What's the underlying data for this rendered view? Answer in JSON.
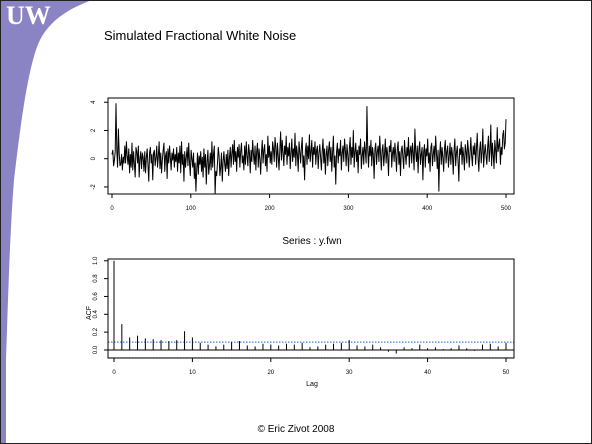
{
  "slide": {
    "logo_text": "UW",
    "title": "Simulated Fractional White Noise",
    "footer": "© Eric Zivot 2008"
  },
  "colors": {
    "logo_purple": "#8a84c4",
    "logo_text": "#ffffff",
    "series": "#000000",
    "ci_band": "#1a66cc"
  },
  "chart_data": [
    {
      "type": "line",
      "title": "",
      "xlabel": "",
      "ylabel": "",
      "xlim": [
        0,
        500
      ],
      "ylim": [
        -2.5,
        4.3
      ],
      "x_ticks": [
        "0",
        "100",
        "200",
        "300",
        "400",
        "500"
      ],
      "y_ticks": [
        "-2",
        "0",
        "2",
        "4"
      ],
      "series": [
        {
          "values": [
            0.3,
            0.6,
            -0.5,
            -0.1,
            0.5,
            3.9,
            0.6,
            -0.6,
            2.1,
            0.4,
            -0.5,
            -0.4,
            0.3,
            -0.8,
            0.1,
            -0.3,
            0.9,
            -0.3,
            1.2,
            0.2,
            -0.4,
            0.7,
            -1.0,
            0.3,
            -0.6,
            1.1,
            -0.8,
            0.5,
            -0.4,
            -1.3,
            0.8,
            0.5,
            -0.3,
            0.9,
            -1.3,
            0.0,
            0.5,
            -0.7,
            0.4,
            0.1,
            -0.9,
            0.5,
            -1.0,
            0.1,
            0.7,
            -0.4,
            -1.6,
            0.4,
            0.8,
            -0.3,
            0.3,
            -1.5,
            0.4,
            0.6,
            -0.5,
            0.1,
            0.9,
            -0.6,
            0.2,
            1.2,
            -0.7,
            0.4,
            -1.0,
            -0.1,
            0.6,
            1.1,
            -0.9,
            0.2,
            0.5,
            -1.4,
            0.7,
            -0.3,
            0.9,
            0.1,
            -0.8,
            0.4,
            -0.1,
            0.7,
            -0.6,
            0.3,
            -0.2,
            0.8,
            -0.9,
            0.4,
            -0.3,
            0.9,
            -1.0,
            1.2,
            -0.4,
            0.3,
            -1.6,
            0.5,
            -0.6,
            0.1,
            0.8,
            -0.5,
            1.1,
            -0.3,
            -1.2,
            0.6,
            0.0,
            -0.6,
            0.4,
            -1.4,
            -0.3,
            -2.3,
            -0.8,
            0.4,
            -1.1,
            0.2,
            -0.4,
            0.5,
            -0.9,
            0.1,
            -1.3,
            0.7,
            -0.6,
            0.3,
            -1.8,
            -0.2,
            0.6,
            -1.1,
            -0.5,
            0.4,
            -0.8,
            1.2,
            -0.6,
            0.3,
            0.9,
            -2.5,
            -0.9,
            -1.2,
            -0.3,
            0.8,
            0.2,
            -1.2,
            -0.6,
            0.4,
            -1.6,
            -0.2,
            0.5,
            -0.4,
            -0.9,
            0.3,
            -0.7,
            0.6,
            -1.2,
            0.1,
            0.8,
            -0.6,
            0.4,
            1.0,
            -0.4,
            1.3,
            -0.2,
            0.5,
            -0.9,
            0.8,
            0.1,
            1.0,
            -0.6,
            0.5,
            1.1,
            -0.3,
            0.2,
            -0.8,
            0.9,
            -0.4,
            1.2,
            0.2,
            -0.5,
            1.0,
            0.4,
            -1.0,
            0.6,
            -0.2,
            1.3,
            0.3,
            -0.4,
            0.9,
            -0.8,
            0.5,
            1.1,
            -0.6,
            0.7,
            0.0,
            -1.1,
            0.4,
            1.3,
            -0.3,
            0.6,
            1.0,
            -0.5,
            0.3,
            -0.9,
            1.6,
            0.1,
            0.9,
            -0.3,
            0.5,
            -0.4,
            1.2,
            0.7,
            -0.2,
            1.5,
            0.8,
            -0.6,
            1.1,
            0.2,
            -0.8,
            0.6,
            1.9,
            -0.1,
            1.3,
            0.4,
            -0.5,
            0.9,
            0.3,
            1.6,
            -0.4,
            0.8,
            0.2,
            1.1,
            -0.7,
            0.4,
            1.4,
            -0.2,
            0.7,
            0.1,
            1.8,
            -0.5,
            0.9,
            0.3,
            -0.9,
            1.2,
            0.5,
            -0.3,
            0.8,
            1.5,
            -0.6,
            0.2,
            -1.5,
            0.6,
            1.1,
            -0.4,
            0.9,
            0.0,
            1.7,
            -0.2,
            0.5,
            1.3,
            -0.6,
            0.8,
            0.3,
            1.2,
            -0.4,
            0.6,
            0.9,
            -0.7,
            0.4,
            1.0,
            0.1,
            -0.8,
            0.5,
            1.4,
            -0.3,
            0.7,
            -1.1,
            0.3,
            0.9,
            -0.5,
            0.6,
            1.2,
            -0.2,
            0.8,
            -0.9,
            0.4,
            1.6,
            -0.6,
            0.2,
            -1.8,
            0.5,
            1.1,
            -0.3,
            0.7,
            0.2,
            1.3,
            -0.8,
            0.4,
            0.9,
            -0.2,
            1.4,
            0.6,
            -0.5,
            1.0,
            0.3,
            -0.9,
            0.7,
            1.5,
            -0.4,
            0.8,
            0.1,
            2.0,
            -0.6,
            0.5,
            1.1,
            -0.2,
            0.6,
            -1.0,
            0.9,
            0.3,
            1.4,
            -0.7,
            0.2,
            0.8,
            -0.4,
            1.2,
            0.5,
            -0.3,
            3.7,
            0.6,
            -0.6,
            0.9,
            0.2,
            1.3,
            -0.5,
            0.8,
            0.3,
            -1.4,
            0.7,
            1.1,
            -0.4,
            0.5,
            0.9,
            -0.2,
            1.6,
            0.4,
            -0.8,
            0.6,
            1.0,
            -0.5,
            0.3,
            1.4,
            -0.3,
            0.8,
            0.2,
            -1.2,
            0.9,
            0.5,
            1.3,
            -0.6,
            0.4,
            0.8,
            -0.2,
            1.1,
            0.3,
            -0.9,
            0.7,
            1.2,
            -0.4,
            0.5,
            -1.2,
            0.6,
            0.9,
            0.1,
            -0.7,
            1.3,
            0.4,
            -0.4,
            0.8,
            0.2,
            1.5,
            -0.6,
            0.6,
            0.9,
            -0.3,
            1.1,
            0.4,
            -0.8,
            2.1,
            0.5,
            -0.2,
            0.9,
            -1.0,
            0.6,
            1.2,
            -0.4,
            0.3,
            0.8,
            -1.5,
            0.5,
            1.0,
            -0.6,
            0.7,
            0.2,
            1.4,
            -0.3,
            0.4,
            -0.9,
            0.8,
            1.1,
            -0.5,
            0.3,
            0.9,
            -0.2,
            1.6,
            0.4,
            -0.7,
            0.6,
            -2.3,
            0.3,
            1.2,
            -0.4,
            0.8,
            0.1,
            -0.9,
            0.7,
            1.3,
            -0.3,
            0.5,
            0.9,
            -0.6,
            0.2,
            1.1,
            -0.4,
            0.8,
            0.3,
            -1.1,
            0.6,
            1.4,
            -0.5,
            0.4,
            0.9,
            -0.2,
            -1.6,
            0.7,
            0.3,
            1.2,
            -0.4,
            0.8,
            0.2,
            -0.8,
            1.0,
            0.5,
            -0.3,
            1.3,
            0.6,
            -0.6,
            0.4,
            1.5,
            0.2,
            -0.5,
            0.9,
            0.3,
            1.1,
            -0.4,
            0.7,
            1.8,
            0.1,
            -0.9,
            0.6,
            1.2,
            -0.3,
            0.5,
            2.1,
            -0.6,
            0.4,
            1.0,
            0.2,
            -0.4,
            0.8,
            1.6,
            -0.2,
            0.6,
            2.4,
            -0.5,
            1.1,
            0.3,
            -0.7,
            1.3,
            0.6,
            -0.3,
            2.2,
            0.5,
            0.9,
            1.4,
            -0.4,
            0.8,
            0.3,
            1.7,
            2.0,
            0.7,
            1.1,
            2.8
          ]
        }
      ]
    },
    {
      "type": "bar",
      "title": "Series : y.fwn",
      "xlabel": "Lag",
      "ylabel": "ACF",
      "xlim": [
        0,
        50
      ],
      "ylim": [
        -0.09,
        1.02
      ],
      "x_ticks": [
        "0",
        "10",
        "20",
        "30",
        "40",
        "50"
      ],
      "y_ticks": [
        "0.0",
        "0.2",
        "0.4",
        "0.6",
        "0.8",
        "1.0"
      ],
      "confidence_band": [
        -0.088,
        0.088
      ],
      "lags": [
        0,
        1,
        2,
        3,
        4,
        5,
        6,
        7,
        8,
        9,
        10,
        11,
        12,
        13,
        14,
        15,
        16,
        17,
        18,
        19,
        20,
        21,
        22,
        23,
        24,
        25,
        26,
        27,
        28,
        29,
        30,
        31,
        32,
        33,
        34,
        35,
        36,
        37,
        38,
        39,
        40,
        41,
        42,
        43,
        44,
        45,
        46,
        47,
        48,
        49,
        50
      ],
      "values": [
        1.0,
        0.29,
        0.14,
        0.16,
        0.13,
        0.12,
        0.11,
        0.1,
        0.11,
        0.21,
        0.14,
        0.08,
        0.06,
        0.04,
        0.06,
        0.09,
        0.1,
        0.05,
        0.04,
        0.07,
        0.06,
        0.05,
        0.07,
        0.06,
        0.08,
        0.03,
        0.04,
        0.06,
        0.07,
        0.08,
        0.11,
        0.05,
        0.04,
        0.06,
        0.03,
        -0.02,
        -0.04,
        0.03,
        0.02,
        0.06,
        0.02,
        0.03,
        0.01,
        0.02,
        0.05,
        0.02,
        -0.01,
        0.06,
        0.07,
        0.04,
        0.08
      ]
    }
  ]
}
